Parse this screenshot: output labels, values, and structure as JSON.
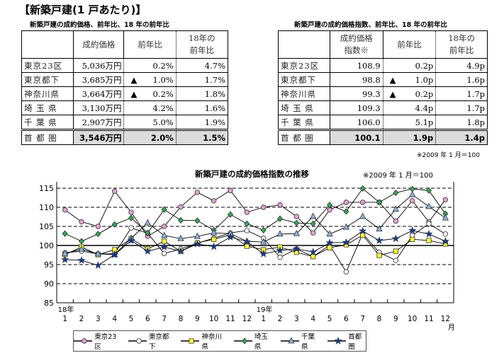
{
  "title": "【新築戸建(1 戸あたり)】",
  "left_table": {
    "caption": "新築戸建の成約価格、前年比、18 年の前年比",
    "headers": [
      "",
      "成約価格",
      "前年比",
      "18年の\n前年比"
    ],
    "rows": [
      {
        "region": "東京23区",
        "value": "5,036万円",
        "down": false,
        "yoy": "0.2%",
        "yoy18": "4.7%"
      },
      {
        "region": "東京都下",
        "value": "3,685万円",
        "down": true,
        "yoy": "1.0%",
        "yoy18": "1.7%"
      },
      {
        "region": "神奈川県",
        "value": "3,664万円",
        "down": true,
        "yoy": "0.2%",
        "yoy18": "1.8%"
      },
      {
        "region": "埼 玉 県",
        "value": "3,130万円",
        "down": false,
        "yoy": "4.2%",
        "yoy18": "1.6%"
      },
      {
        "region": "千 葉 県",
        "value": "2,907万円",
        "down": false,
        "yoy": "5.0%",
        "yoy18": "1.9%"
      },
      {
        "region": "首 都 圏",
        "value": "3,546万円",
        "down": false,
        "yoy": "2.0%",
        "yoy18": "1.5%"
      }
    ]
  },
  "right_table": {
    "caption": "新築戸建の成約価格指数、前年比、18 年の前年比",
    "headers": [
      "",
      "成約価格\n指数※",
      "前年比",
      "18年の\n前年比"
    ],
    "rows": [
      {
        "region": "東京23区",
        "value": "108.9",
        "down": false,
        "yoy": "0.2p",
        "yoy18": "4.9p"
      },
      {
        "region": "東京都下",
        "value": "98.8",
        "down": true,
        "yoy": "1.0p",
        "yoy18": "1.6p"
      },
      {
        "region": "神奈川県",
        "value": "99.3",
        "down": true,
        "yoy": "0.2p",
        "yoy18": "1.7p"
      },
      {
        "region": "埼 玉 県",
        "value": "109.3",
        "down": false,
        "yoy": "4.4p",
        "yoy18": "1.7p"
      },
      {
        "region": "千 葉 県",
        "value": "106.0",
        "down": false,
        "yoy": "5.1p",
        "yoy18": "1.8p"
      },
      {
        "region": "首 都 圏",
        "value": "100.1",
        "down": false,
        "yoy": "1.9p",
        "yoy18": "1.4p"
      }
    ],
    "note": "※2009 年 1 月＝100"
  },
  "down_marker": "▲",
  "chart_data": {
    "type": "line",
    "title": "新築戸建の成約価格指数の推移",
    "note": "※2009 年 1 月＝100",
    "year_labels": [
      {
        "label": "18年",
        "index": 0
      },
      {
        "label": "19年",
        "index": 12
      }
    ],
    "categories": [
      "1",
      "2",
      "3",
      "4",
      "5",
      "6",
      "7",
      "8",
      "9",
      "10",
      "11",
      "12",
      "1",
      "2",
      "3",
      "4",
      "5",
      "6",
      "7",
      "8",
      "9",
      "10",
      "11",
      "12"
    ],
    "x_unit": "月",
    "ylim": [
      85,
      115
    ],
    "yticks": [
      85,
      90,
      95,
      100,
      105,
      110,
      115
    ],
    "grid": "dashed horizontal, solid at 100",
    "legend_position": "bottom",
    "series": [
      {
        "name": "東京23区",
        "marker": "circle",
        "color": "#e79fd7",
        "values": [
          109.3,
          106.2,
          105.0,
          114.2,
          108.7,
          102.4,
          105.0,
          110.1,
          113.9,
          111.7,
          114.4,
          108.7,
          110.0,
          110.6,
          107.6,
          103.3,
          109.3,
          111.3,
          111.3,
          111.3,
          106.4,
          111.7,
          106.2,
          112.0
        ]
      },
      {
        "name": "東京都下",
        "marker": "open-circle",
        "color": "#ffffff",
        "values": [
          98.1,
          98.5,
          97.8,
          97.8,
          104.6,
          103.2,
          97.9,
          99.1,
          100.6,
          101.9,
          103.3,
          103.9,
          101.9,
          96.9,
          99.1,
          97.1,
          100.1,
          93.1,
          103.1,
          98.2,
          96.1,
          102.6,
          105.7,
          103.0
        ]
      },
      {
        "name": "神奈川県",
        "marker": "square",
        "color": "#ffff33",
        "values": [
          97.6,
          99.6,
          97.6,
          98.9,
          101.8,
          99.1,
          101.1,
          98.5,
          100.7,
          101.6,
          102.8,
          99.8,
          98.9,
          99.6,
          98.2,
          97.1,
          99.4,
          100.2,
          102.7,
          97.4,
          98.5,
          101.6,
          101.3,
          100.4
        ]
      },
      {
        "name": "埼玉県",
        "marker": "diamond",
        "color": "#2eaa55",
        "values": [
          103.1,
          101.1,
          103.0,
          105.5,
          107.2,
          103.3,
          109.4,
          106.6,
          106.5,
          104.0,
          108.1,
          105.7,
          104.0,
          107.0,
          105.9,
          105.7,
          110.6,
          108.9,
          114.9,
          111.3,
          113.8,
          114.8,
          114.4,
          108.3
        ]
      },
      {
        "name": "千葉県",
        "marker": "triangle",
        "color": "#8db4e2",
        "values": [
          97.9,
          99.0,
          97.8,
          97.6,
          101.9,
          105.9,
          102.6,
          101.8,
          102.4,
          103.3,
          103.1,
          101.1,
          100.9,
          103.0,
          103.1,
          107.6,
          103.0,
          104.8,
          107.6,
          104.3,
          109.5,
          113.3,
          110.2,
          107.2
        ]
      },
      {
        "name": "首都圏",
        "marker": "star",
        "color": "#1f3b73",
        "values": [
          96.3,
          96.1,
          94.8,
          97.6,
          101.3,
          98.5,
          99.6,
          98.5,
          100.4,
          99.7,
          102.2,
          101.0,
          97.8,
          98.7,
          99.1,
          98.3,
          100.7,
          100.8,
          103.8,
          101.3,
          101.8,
          103.9,
          103.0,
          101.1
        ]
      }
    ]
  }
}
